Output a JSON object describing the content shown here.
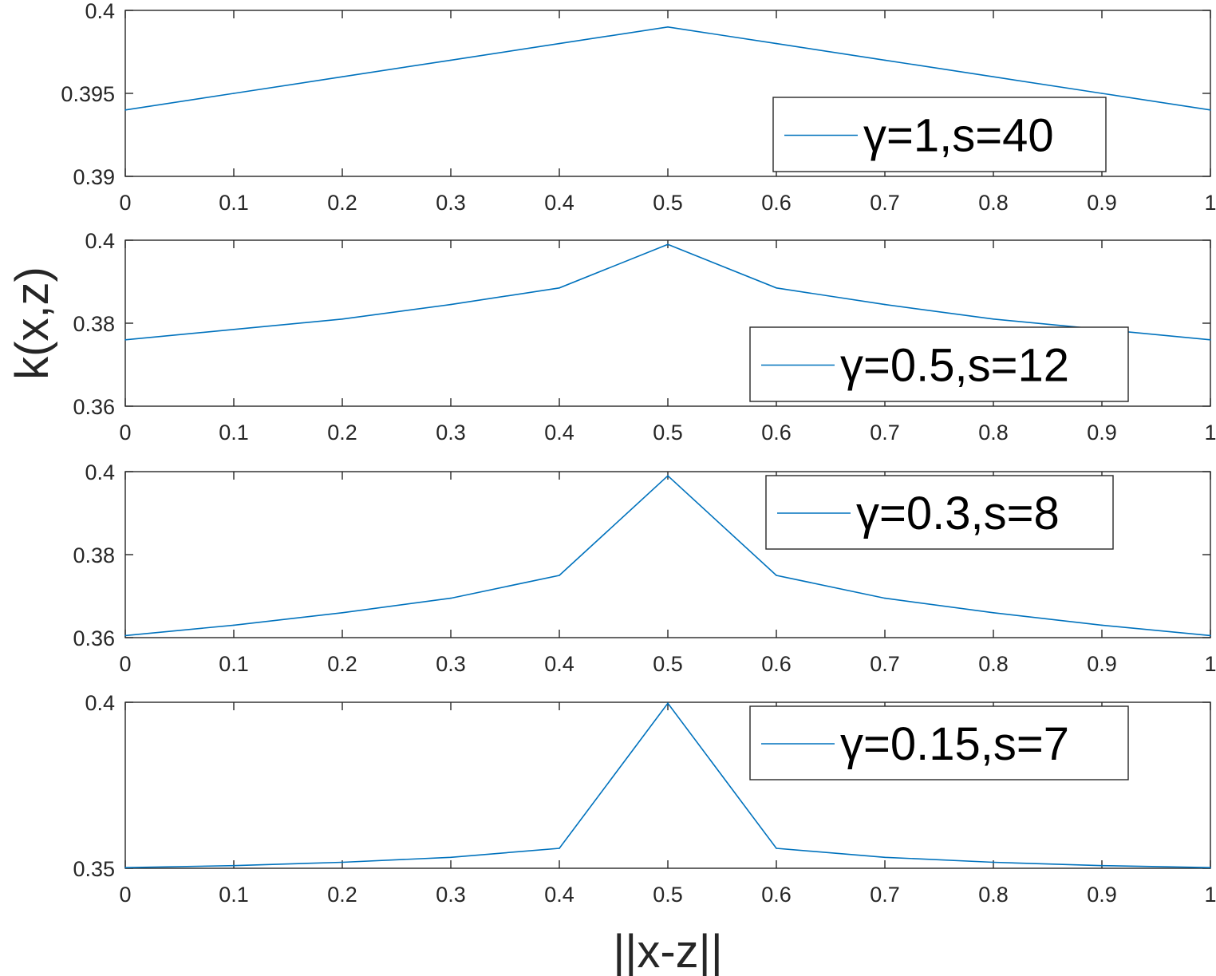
{
  "figure": {
    "ylabel": "k(x,z)",
    "xlabel": "||x-z||"
  },
  "colors": {
    "line": "#0072BD",
    "axes": "#262626",
    "background": "#ffffff"
  },
  "chart_data": [
    {
      "type": "line",
      "x": [
        0,
        0.1,
        0.2,
        0.3,
        0.4,
        0.5,
        0.6,
        0.7,
        0.8,
        0.9,
        1
      ],
      "series": [
        {
          "name": "γ=1,s=40",
          "values": [
            0.394,
            0.395,
            0.396,
            0.397,
            0.398,
            0.399,
            0.398,
            0.397,
            0.396,
            0.395,
            0.394
          ]
        }
      ],
      "xlim": [
        0,
        1
      ],
      "ylim": [
        0.39,
        0.4
      ],
      "xticks": [
        "0",
        "0.1",
        "0.2",
        "0.3",
        "0.4",
        "0.5",
        "0.6",
        "0.7",
        "0.8",
        "0.9",
        "1"
      ],
      "yticks": [
        {
          "value": 0.39,
          "label": "0.39"
        },
        {
          "value": 0.395,
          "label": "0.395"
        },
        {
          "value": 0.4,
          "label": "0.4"
        }
      ],
      "legend_position": "lower-right",
      "grid": false
    },
    {
      "type": "line",
      "x": [
        0,
        0.1,
        0.2,
        0.3,
        0.4,
        0.5,
        0.6,
        0.7,
        0.8,
        0.9,
        1
      ],
      "series": [
        {
          "name": "γ=0.5,s=12",
          "values": [
            0.376,
            0.3785,
            0.381,
            0.3845,
            0.3885,
            0.399,
            0.3885,
            0.3845,
            0.381,
            0.3785,
            0.376
          ]
        }
      ],
      "xlim": [
        0,
        1
      ],
      "ylim": [
        0.36,
        0.4
      ],
      "xticks": [
        "0",
        "0.1",
        "0.2",
        "0.3",
        "0.4",
        "0.5",
        "0.6",
        "0.7",
        "0.8",
        "0.9",
        "1"
      ],
      "yticks": [
        {
          "value": 0.36,
          "label": "0.36"
        },
        {
          "value": 0.38,
          "label": "0.38"
        },
        {
          "value": 0.4,
          "label": "0.4"
        }
      ],
      "legend_position": "lower-right",
      "grid": false
    },
    {
      "type": "line",
      "x": [
        0,
        0.1,
        0.2,
        0.3,
        0.4,
        0.5,
        0.6,
        0.7,
        0.8,
        0.9,
        1
      ],
      "series": [
        {
          "name": "γ=0.3,s=8",
          "values": [
            0.3605,
            0.363,
            0.366,
            0.3695,
            0.375,
            0.399,
            0.375,
            0.3695,
            0.366,
            0.363,
            0.3605
          ]
        }
      ],
      "xlim": [
        0,
        1
      ],
      "ylim": [
        0.36,
        0.4
      ],
      "xticks": [
        "0",
        "0.1",
        "0.2",
        "0.3",
        "0.4",
        "0.5",
        "0.6",
        "0.7",
        "0.8",
        "0.9",
        "1"
      ],
      "yticks": [
        {
          "value": 0.36,
          "label": "0.36"
        },
        {
          "value": 0.38,
          "label": "0.38"
        },
        {
          "value": 0.4,
          "label": "0.4"
        }
      ],
      "legend_position": "top-right",
      "grid": false
    },
    {
      "type": "line",
      "x": [
        0,
        0.1,
        0.2,
        0.3,
        0.4,
        0.5,
        0.6,
        0.7,
        0.8,
        0.9,
        1
      ],
      "series": [
        {
          "name": "γ=0.15,s=7",
          "values": [
            0.3502,
            0.3508,
            0.3518,
            0.3533,
            0.356,
            0.3997,
            0.356,
            0.3533,
            0.3518,
            0.3508,
            0.3502
          ]
        }
      ],
      "xlim": [
        0,
        1
      ],
      "ylim": [
        0.35,
        0.4
      ],
      "xticks": [
        "0",
        "0.1",
        "0.2",
        "0.3",
        "0.4",
        "0.5",
        "0.6",
        "0.7",
        "0.8",
        "0.9",
        "1"
      ],
      "yticks": [
        {
          "value": 0.35,
          "label": "0.35"
        },
        {
          "value": 0.4,
          "label": "0.4"
        }
      ],
      "legend_position": "top-right",
      "grid": false
    }
  ]
}
